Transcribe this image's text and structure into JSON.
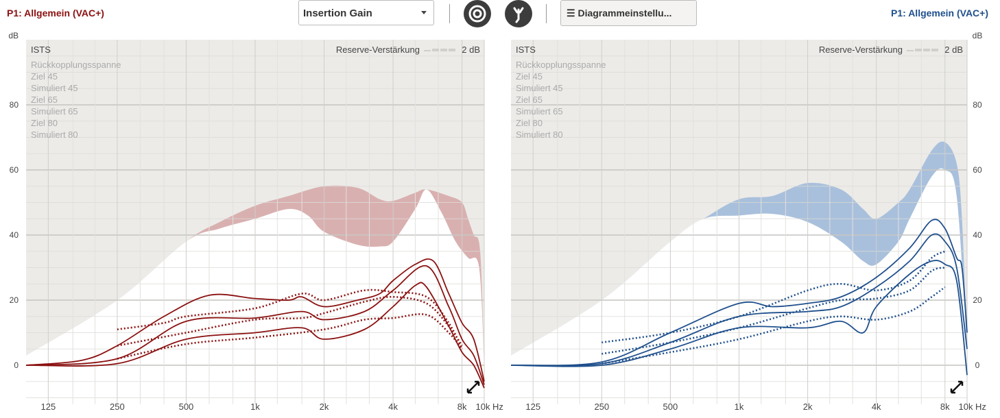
{
  "header": {
    "left_title": "P1: Allgemein (VAC+)",
    "right_title": "P1: Allgemein (VAC+)",
    "view_select": "Insertion Gain",
    "settings_button": "Diagrammeinstellu...",
    "menu_icon": "☰",
    "icons": [
      "target-icon",
      "sound-source-icon"
    ]
  },
  "colors": {
    "left": "#8b1010",
    "left_band": "#d9b0b0",
    "right": "#1e4f8c",
    "right_band": "#a9c0dc",
    "bg": "#ecebe8"
  },
  "chart_data": [
    {
      "type": "line",
      "side": "left",
      "title": "ISTS",
      "reserve_label": "Reserve-Verstärkung",
      "reserve_value": "2 dB",
      "ylabel": "dB",
      "xlabel": "Hz",
      "xlim": [
        100,
        10000
      ],
      "ylim": [
        -12,
        100
      ],
      "yticks": [
        0,
        20,
        40,
        60,
        80
      ],
      "xticks": [
        {
          "f": 125,
          "l": "125"
        },
        {
          "f": 250,
          "l": "250"
        },
        {
          "f": 500,
          "l": "500"
        },
        {
          "f": 1000,
          "l": "1k"
        },
        {
          "f": 2000,
          "l": "2k"
        },
        {
          "f": 4000,
          "l": "4k"
        },
        {
          "f": 8000,
          "l": "8k"
        },
        {
          "f": 10000,
          "l": "10k"
        }
      ],
      "legend": [
        "Rückkopplungsspanne",
        "Ziel 45",
        "Simuliert 45",
        "Ziel 65",
        "Simuliert 65",
        "Ziel 80",
        "Simuliert 80"
      ],
      "feedback_upper": [
        [
          100,
          3
        ],
        [
          250,
          20
        ],
        [
          500,
          38
        ],
        [
          700,
          44
        ],
        [
          1000,
          49
        ],
        [
          1400,
          52
        ],
        [
          2000,
          55
        ],
        [
          2800,
          54.5
        ],
        [
          3500,
          51
        ],
        [
          4000,
          50.5
        ],
        [
          5000,
          53
        ],
        [
          5600,
          54
        ],
        [
          7000,
          52
        ],
        [
          8000,
          50
        ],
        [
          8500,
          45
        ],
        [
          9000,
          40
        ],
        [
          9600,
          35
        ],
        [
          10000,
          0
        ]
      ],
      "feedback_lower": [
        [
          100,
          3
        ],
        [
          250,
          20
        ],
        [
          500,
          38
        ],
        [
          700,
          42
        ],
        [
          1000,
          45
        ],
        [
          1400,
          48
        ],
        [
          1700,
          46
        ],
        [
          2000,
          41
        ],
        [
          2800,
          37
        ],
        [
          3500,
          36.5
        ],
        [
          4000,
          38
        ],
        [
          5000,
          48
        ],
        [
          5600,
          54
        ],
        [
          6500,
          47
        ],
        [
          7500,
          38
        ],
        [
          8500,
          33
        ],
        [
          9500,
          30
        ],
        [
          10000,
          0
        ]
      ],
      "series": [
        {
          "name": "Simuliert 80",
          "style": "solid",
          "points": [
            [
              100,
              0
            ],
            [
              175,
              1.5
            ],
            [
              250,
              6
            ],
            [
              400,
              15
            ],
            [
              630,
              21.5
            ],
            [
              1000,
              20.5
            ],
            [
              1400,
              20
            ],
            [
              1600,
              21
            ],
            [
              2000,
              18
            ],
            [
              2800,
              20
            ],
            [
              3500,
              22
            ],
            [
              4000,
              26
            ],
            [
              5000,
              31
            ],
            [
              6000,
              32
            ],
            [
              7000,
              22
            ],
            [
              8000,
              13
            ],
            [
              9000,
              8
            ],
            [
              10000,
              -5
            ]
          ]
        },
        {
          "name": "Simuliert 65",
          "style": "solid",
          "points": [
            [
              100,
              0
            ],
            [
              250,
              2
            ],
            [
              500,
              13.5
            ],
            [
              1000,
              14.5
            ],
            [
              1600,
              16.5
            ],
            [
              2000,
              14
            ],
            [
              3000,
              16.5
            ],
            [
              4000,
              23
            ],
            [
              5600,
              30.5
            ],
            [
              7000,
              18
            ],
            [
              8000,
              8
            ],
            [
              9000,
              3
            ],
            [
              10000,
              -6
            ]
          ]
        },
        {
          "name": "Simuliert 45",
          "style": "solid",
          "points": [
            [
              100,
              0
            ],
            [
              250,
              0.5
            ],
            [
              500,
              8
            ],
            [
              1000,
              10
            ],
            [
              1600,
              11.5
            ],
            [
              2000,
              8
            ],
            [
              3000,
              11
            ],
            [
              4000,
              18
            ],
            [
              5000,
              24.5
            ],
            [
              5600,
              24
            ],
            [
              7000,
              12
            ],
            [
              8000,
              4
            ],
            [
              9000,
              0
            ],
            [
              10000,
              -7
            ]
          ]
        },
        {
          "name": "Ziel 80",
          "style": "dotted",
          "points": [
            [
              250,
              11
            ],
            [
              400,
              13
            ],
            [
              500,
              15
            ],
            [
              1000,
              17.5
            ],
            [
              1600,
              22
            ],
            [
              2000,
              20
            ],
            [
              3000,
              23
            ],
            [
              4000,
              22.5
            ],
            [
              5600,
              21
            ],
            [
              7000,
              13
            ],
            [
              8000,
              5
            ]
          ]
        },
        {
          "name": "Ziel 65",
          "style": "dotted",
          "points": [
            [
              250,
              6
            ],
            [
              500,
              10
            ],
            [
              1000,
              14
            ],
            [
              1600,
              14.5
            ],
            [
              2000,
              16
            ],
            [
              3000,
              19.5
            ],
            [
              4000,
              21
            ],
            [
              5600,
              19
            ],
            [
              7000,
              12
            ],
            [
              8000,
              6
            ]
          ]
        },
        {
          "name": "Ziel 45",
          "style": "dotted",
          "points": [
            [
              250,
              2
            ],
            [
              500,
              6.5
            ],
            [
              1000,
              8.5
            ],
            [
              2000,
              11
            ],
            [
              3000,
              14
            ],
            [
              4000,
              14.5
            ],
            [
              5600,
              15.5
            ],
            [
              7000,
              10
            ],
            [
              8000,
              5
            ]
          ]
        }
      ]
    },
    {
      "type": "line",
      "side": "right",
      "title": "ISTS",
      "reserve_label": "Reserve-Verstärkung",
      "reserve_value": "2 dB",
      "ylabel": "dB",
      "xlabel": "Hz",
      "xlim": [
        100,
        10000
      ],
      "ylim": [
        -12,
        100
      ],
      "yticks": [
        0,
        20,
        40,
        60,
        80
      ],
      "xticks": [
        {
          "f": 125,
          "l": "125"
        },
        {
          "f": 250,
          "l": "250"
        },
        {
          "f": 500,
          "l": "500"
        },
        {
          "f": 1000,
          "l": "1k"
        },
        {
          "f": 2000,
          "l": "2k"
        },
        {
          "f": 4000,
          "l": "4k"
        },
        {
          "f": 8000,
          "l": "8k"
        },
        {
          "f": 10000,
          "l": "10k"
        }
      ],
      "legend": [
        "Rückkopplungsspanne",
        "Ziel 45",
        "Simuliert 45",
        "Ziel 65",
        "Simuliert 65",
        "Ziel 80",
        "Simuliert 80"
      ],
      "feedback_upper": [
        [
          100,
          3
        ],
        [
          250,
          20
        ],
        [
          500,
          38
        ],
        [
          700,
          45
        ],
        [
          1000,
          51
        ],
        [
          1400,
          52
        ],
        [
          2000,
          56
        ],
        [
          2800,
          54
        ],
        [
          3500,
          48
        ],
        [
          4000,
          45
        ],
        [
          5000,
          50
        ],
        [
          5600,
          54
        ],
        [
          7000,
          66
        ],
        [
          8000,
          68.5
        ],
        [
          9000,
          62
        ],
        [
          9500,
          45
        ],
        [
          10000,
          5
        ]
      ],
      "feedback_lower": [
        [
          100,
          3
        ],
        [
          250,
          20
        ],
        [
          500,
          38
        ],
        [
          700,
          45
        ],
        [
          1000,
          46
        ],
        [
          1400,
          46.5
        ],
        [
          2000,
          44
        ],
        [
          2800,
          38
        ],
        [
          3500,
          32
        ],
        [
          4000,
          31
        ],
        [
          5000,
          38
        ],
        [
          5600,
          45
        ],
        [
          7000,
          58
        ],
        [
          8000,
          60
        ],
        [
          9000,
          52
        ],
        [
          10000,
          5
        ]
      ],
      "series": [
        {
          "name": "Simuliert 80",
          "style": "solid",
          "points": [
            [
              100,
              0
            ],
            [
              250,
              1
            ],
            [
              500,
              10
            ],
            [
              1000,
              19
            ],
            [
              1400,
              18
            ],
            [
              2000,
              19
            ],
            [
              2800,
              21
            ],
            [
              4000,
              27
            ],
            [
              5600,
              36
            ],
            [
              7000,
              44.5
            ],
            [
              8000,
              42
            ],
            [
              9000,
              33
            ],
            [
              9500,
              30
            ],
            [
              10000,
              10
            ]
          ]
        },
        {
          "name": "Simuliert 65",
          "style": "solid",
          "points": [
            [
              100,
              0
            ],
            [
              250,
              0.5
            ],
            [
              500,
              7
            ],
            [
              1000,
              15
            ],
            [
              2000,
              16.5
            ],
            [
              2800,
              18
            ],
            [
              4000,
              24
            ],
            [
              5600,
              32
            ],
            [
              7000,
              40
            ],
            [
              8000,
              38
            ],
            [
              9000,
              30
            ],
            [
              10000,
              5
            ]
          ]
        },
        {
          "name": "Simuliert 45",
          "style": "solid",
          "points": [
            [
              100,
              0
            ],
            [
              250,
              0
            ],
            [
              500,
              5
            ],
            [
              1000,
              11.5
            ],
            [
              2000,
              11.5
            ],
            [
              2800,
              13.5
            ],
            [
              3500,
              10
            ],
            [
              4000,
              18
            ],
            [
              5600,
              28
            ],
            [
              7000,
              32
            ],
            [
              8000,
              31
            ],
            [
              9000,
              26
            ],
            [
              10000,
              -3
            ]
          ]
        },
        {
          "name": "Ziel 80",
          "style": "dotted",
          "points": [
            [
              250,
              7
            ],
            [
              500,
              10
            ],
            [
              1000,
              15
            ],
            [
              2000,
              23
            ],
            [
              2800,
              25
            ],
            [
              4000,
              23
            ],
            [
              5600,
              26
            ],
            [
              7000,
              33
            ],
            [
              8000,
              35
            ]
          ]
        },
        {
          "name": "Ziel 65",
          "style": "dotted",
          "points": [
            [
              250,
              3.5
            ],
            [
              500,
              7
            ],
            [
              1000,
              11.5
            ],
            [
              2000,
              17.5
            ],
            [
              2800,
              20
            ],
            [
              4000,
              20.5
            ],
            [
              5600,
              23
            ],
            [
              7000,
              29
            ],
            [
              8000,
              30
            ]
          ]
        },
        {
          "name": "Ziel 45",
          "style": "dotted",
          "points": [
            [
              250,
              0.5
            ],
            [
              500,
              4
            ],
            [
              1000,
              8
            ],
            [
              2000,
              13.5
            ],
            [
              2800,
              15
            ],
            [
              4000,
              14
            ],
            [
              5600,
              16.5
            ],
            [
              7000,
              21
            ],
            [
              8000,
              24
            ]
          ]
        }
      ]
    }
  ]
}
